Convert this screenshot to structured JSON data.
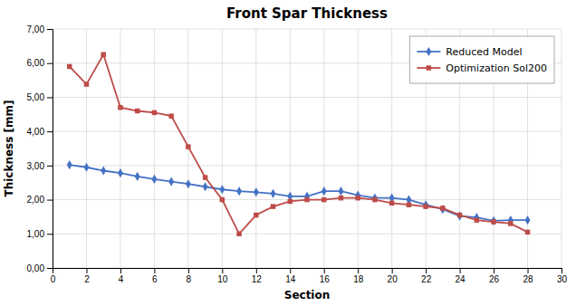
{
  "chart_data": {
    "type": "line",
    "title": "Front Spar Thickness",
    "xlabel": "Section",
    "ylabel": "Thickness [mm]",
    "x": [
      1,
      2,
      3,
      4,
      5,
      6,
      7,
      8,
      9,
      10,
      11,
      12,
      13,
      14,
      15,
      16,
      17,
      18,
      19,
      20,
      21,
      22,
      23,
      24,
      25,
      26,
      27,
      28
    ],
    "series": [
      {
        "name": "Reduced Model",
        "color": "#4472C4",
        "marker": "diamond",
        "values": [
          3.02,
          2.95,
          2.85,
          2.78,
          2.68,
          2.6,
          2.53,
          2.46,
          2.38,
          2.3,
          2.25,
          2.22,
          2.18,
          2.1,
          2.1,
          2.25,
          2.25,
          2.13,
          2.05,
          2.05,
          2.0,
          1.85,
          1.72,
          1.52,
          1.48,
          1.38,
          1.4,
          1.4
        ]
      },
      {
        "name": "Optimization Sol200",
        "color": "#BE4B48",
        "marker": "square",
        "values": [
          5.9,
          5.38,
          6.25,
          4.7,
          4.6,
          4.55,
          4.45,
          3.55,
          2.65,
          2.0,
          1.0,
          1.55,
          1.8,
          1.95,
          2.0,
          2.0,
          2.05,
          2.05,
          2.0,
          1.9,
          1.85,
          1.8,
          1.75,
          1.55,
          1.4,
          1.35,
          1.3,
          1.05
        ]
      }
    ],
    "xlim": [
      0,
      30
    ],
    "ylim": [
      0.0,
      7.0
    ],
    "xticks": [
      0,
      2,
      4,
      6,
      8,
      10,
      12,
      14,
      16,
      18,
      20,
      22,
      24,
      26,
      28,
      30
    ],
    "yticks": [
      {
        "value": 0.0,
        "label": "0,00"
      },
      {
        "value": 1.0,
        "label": "1,00"
      },
      {
        "value": 2.0,
        "label": "2,00"
      },
      {
        "value": 3.0,
        "label": "3,00"
      },
      {
        "value": 4.0,
        "label": "4,00"
      },
      {
        "value": 5.0,
        "label": "5,00"
      },
      {
        "value": 6.0,
        "label": "6,00"
      },
      {
        "value": 7.0,
        "label": "7,00"
      }
    ],
    "grid": true,
    "legend": "upper right"
  }
}
